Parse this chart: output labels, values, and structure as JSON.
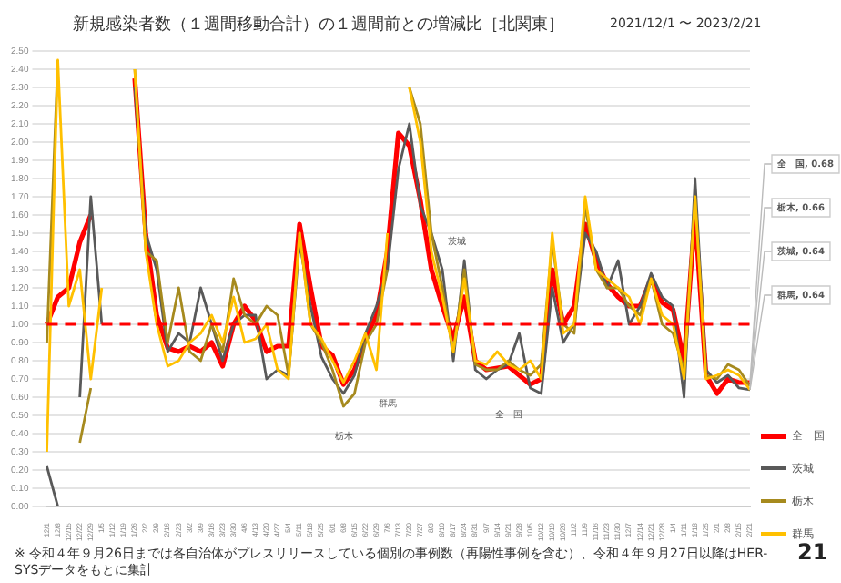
{
  "chart_data": {
    "type": "line",
    "title": "新規感染者数（１週間移動合計）の１週間前との増減比［北関東］",
    "subtitle": "2021/12/1 〜 2023/2/21",
    "categories": [
      "12/1",
      "12/8",
      "12/15",
      "12/22",
      "12/29",
      "1/5",
      "1/12",
      "1/19",
      "1/26",
      "2/2",
      "2/9",
      "2/16",
      "2/23",
      "3/2",
      "3/9",
      "3/16",
      "3/23",
      "3/30",
      "4/6",
      "4/13",
      "4/20",
      "4/27",
      "5/4",
      "5/11",
      "5/18",
      "5/25",
      "6/1",
      "6/8",
      "6/15",
      "6/22",
      "6/29",
      "7/6",
      "7/13",
      "7/20",
      "7/27",
      "8/3",
      "8/10",
      "8/17",
      "8/24",
      "8/31",
      "9/7",
      "9/14",
      "9/21",
      "9/28",
      "10/5",
      "10/12",
      "10/19",
      "10/26",
      "11/2",
      "11/9",
      "11/16",
      "11/23",
      "11/30",
      "12/7",
      "12/14",
      "12/21",
      "12/28",
      "1/4",
      "1/11",
      "1/18",
      "1/25",
      "2/1",
      "2/8",
      "2/15",
      "2/21"
    ],
    "series": [
      {
        "name": "全　国",
        "color": "#ff0000",
        "values": [
          1.0,
          1.15,
          1.2,
          1.45,
          1.6,
          null,
          null,
          null,
          2.35,
          1.5,
          1.05,
          0.87,
          0.85,
          0.88,
          0.85,
          0.9,
          0.77,
          1.0,
          1.1,
          1.02,
          0.85,
          0.88,
          0.88,
          1.55,
          1.2,
          0.88,
          0.83,
          0.67,
          0.75,
          0.92,
          1.05,
          1.4,
          2.05,
          1.98,
          1.68,
          1.3,
          1.1,
          0.92,
          1.15,
          0.8,
          0.75,
          0.76,
          0.77,
          0.72,
          0.67,
          0.7,
          1.3,
          1.0,
          1.1,
          1.55,
          1.35,
          1.22,
          1.15,
          1.1,
          1.1,
          1.25,
          1.12,
          1.08,
          0.8,
          1.6,
          0.72,
          0.62,
          0.7,
          0.68,
          0.68
        ]
      },
      {
        "name": "茨城",
        "color": "#595959",
        "values": [
          0.22,
          0.0,
          null,
          0.6,
          1.7,
          1.0,
          null,
          null,
          2.3,
          1.5,
          1.3,
          0.85,
          0.95,
          0.9,
          1.2,
          1.0,
          0.8,
          1.0,
          1.05,
          1.05,
          0.7,
          0.75,
          0.72,
          1.45,
          1.1,
          0.82,
          0.7,
          0.62,
          0.72,
          0.95,
          1.1,
          1.3,
          1.85,
          2.1,
          1.65,
          1.5,
          1.3,
          0.8,
          1.35,
          0.75,
          0.7,
          0.75,
          0.78,
          0.95,
          0.65,
          0.62,
          1.2,
          0.9,
          1.0,
          1.5,
          1.4,
          1.2,
          1.35,
          1.0,
          1.1,
          1.28,
          1.15,
          1.1,
          0.6,
          1.8,
          0.75,
          0.68,
          0.72,
          0.65,
          0.64
        ]
      },
      {
        "name": "栃木",
        "color": "#a68a1e",
        "values": [
          0.9,
          2.45,
          null,
          0.35,
          0.65,
          null,
          null,
          null,
          2.4,
          1.4,
          1.35,
          0.9,
          1.2,
          0.85,
          0.8,
          1.0,
          0.85,
          1.25,
          1.05,
          1.0,
          1.1,
          1.05,
          0.72,
          1.5,
          1.0,
          0.9,
          0.75,
          0.55,
          0.62,
          0.9,
          1.0,
          1.3,
          null,
          2.3,
          2.1,
          1.5,
          1.2,
          0.85,
          1.3,
          0.78,
          0.75,
          0.75,
          0.8,
          0.75,
          0.72,
          0.78,
          1.45,
          1.0,
          0.95,
          1.65,
          1.3,
          1.2,
          1.2,
          1.1,
          1.05,
          1.25,
          1.0,
          0.95,
          0.75,
          1.7,
          0.72,
          0.7,
          0.78,
          0.75,
          0.66
        ]
      },
      {
        "name": "群馬",
        "color": "#ffc000",
        "values": [
          0.3,
          2.45,
          1.1,
          1.3,
          0.7,
          1.2,
          null,
          null,
          2.4,
          1.4,
          1.0,
          0.77,
          0.8,
          0.9,
          0.95,
          1.05,
          0.9,
          1.15,
          0.9,
          0.92,
          1.0,
          0.75,
          0.7,
          1.5,
          1.0,
          0.92,
          0.8,
          0.68,
          0.8,
          0.95,
          0.75,
          1.5,
          null,
          2.3,
          2.0,
          1.4,
          1.15,
          0.85,
          1.25,
          0.8,
          0.78,
          0.85,
          0.78,
          0.75,
          0.8,
          0.7,
          1.5,
          0.95,
          1.0,
          1.7,
          1.3,
          1.25,
          1.2,
          1.15,
          1.0,
          1.25,
          1.05,
          1.0,
          0.7,
          1.7,
          0.7,
          0.72,
          0.75,
          0.72,
          0.64
        ]
      }
    ],
    "ylim": [
      0,
      2.5
    ],
    "yticks": [
      {
        "value": 0,
        "label": "0.00"
      },
      {
        "value": 0.1,
        "label": "0.10"
      },
      {
        "value": 0.2,
        "label": "0.20"
      },
      {
        "value": 0.3,
        "label": "0.30"
      },
      {
        "value": 0.4,
        "label": "0.40"
      },
      {
        "value": 0.5,
        "label": "0.50"
      },
      {
        "value": 0.6,
        "label": "0.60"
      },
      {
        "value": 0.7,
        "label": "0.70"
      },
      {
        "value": 0.8,
        "label": "0.80"
      },
      {
        "value": 0.9,
        "label": "0.90"
      },
      {
        "value": 1,
        "label": "1.00"
      },
      {
        "value": 1.1,
        "label": "1.10"
      },
      {
        "value": 1.2,
        "label": "1.20"
      },
      {
        "value": 1.3,
        "label": "1.30"
      },
      {
        "value": 1.4,
        "label": "1.40"
      },
      {
        "value": 1.5,
        "label": "1.50"
      },
      {
        "value": 1.6,
        "label": "1.60"
      },
      {
        "value": 1.7,
        "label": "1.70"
      },
      {
        "value": 1.8,
        "label": "1.80"
      },
      {
        "value": 1.9,
        "label": "1.90"
      },
      {
        "value": 2,
        "label": "2.00"
      },
      {
        "value": 2.1,
        "label": "2.10"
      },
      {
        "value": 2.2,
        "label": "2.20"
      },
      {
        "value": 2.3,
        "label": "2.30"
      },
      {
        "value": 2.4,
        "label": "2.40"
      },
      {
        "value": 2.5,
        "label": "2.50"
      }
    ],
    "grid": "y",
    "legend": "bottom right",
    "marker": "none",
    "ref_lines": [
      {
        "axis": "y",
        "value": 1,
        "color": "#ff0000",
        "line_style": "dashed"
      }
    ],
    "annotations": [
      {
        "text": "全　国, 0.68",
        "x": "2/21",
        "y": 0.68
      },
      {
        "text": "栃木, 0.66",
        "x": "2/21",
        "y": 0.66
      },
      {
        "text": "茨城, 0.64",
        "x": "2/21",
        "y": 0.64
      },
      {
        "text": "群馬, 0.64",
        "x": "2/21",
        "y": 0.64
      },
      "茨城",
      "栃木",
      "群馬",
      "全　国",
      "※ 令和４年９月26日までは各自治体がプレスリリースしている個別の事例数（再陽性事例を含む）、令和４年９月27日以降はHER-SYSデータをもとに集計",
      "21"
    ]
  }
}
